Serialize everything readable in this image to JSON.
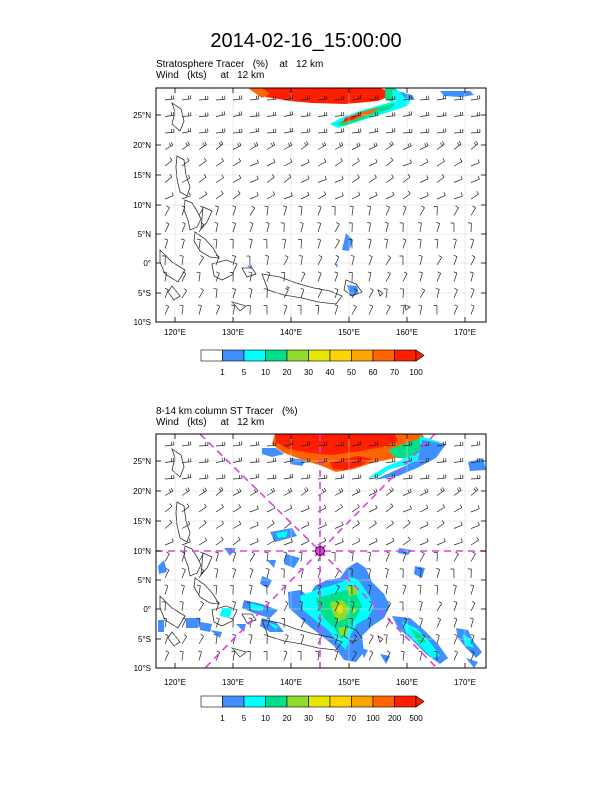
{
  "title": "2014-02-16_15:00:00",
  "panel1": {
    "line1": "Stratosphere Tracer   (%)    at   12 km",
    "line2": "Wind   (kts)     at   12 km",
    "lon_labels": [
      "120°E",
      "130°E",
      "140°E",
      "150°E",
      "160°E",
      "170°E"
    ],
    "lat_labels": [
      "25°N",
      "20°N",
      "15°N",
      "10°N",
      "5°N",
      "0°",
      "5°S",
      "10°S"
    ],
    "colorbar": {
      "labels": [
        "1",
        "5",
        "10",
        "20",
        "30",
        "40",
        "50",
        "60",
        "70",
        "100"
      ],
      "colors": [
        "#ffffff",
        "#3f8fff",
        "#00ffff",
        "#00e08a",
        "#8fdc2e",
        "#e6e600",
        "#ffd400",
        "#ffa500",
        "#ff6400",
        "#ff1e00"
      ]
    }
  },
  "panel2": {
    "line1": "8-14 km column ST Tracer   (%)",
    "line2": "Wind   (kts)     at   12 km",
    "lon_labels": [
      "120°E",
      "130°E",
      "140°E",
      "150°E",
      "160°E",
      "170°E"
    ],
    "lat_labels": [
      "25°N",
      "20°N",
      "15°N",
      "10°N",
      "5°N",
      "0°",
      "5°S",
      "10°S"
    ],
    "colorbar": {
      "labels": [
        "1",
        "5",
        "10",
        "20",
        "30",
        "50",
        "70",
        "100",
        "200",
        "500"
      ],
      "colors": [
        "#ffffff",
        "#3f8fff",
        "#00ffff",
        "#00e08a",
        "#8fdc2e",
        "#e6e600",
        "#ffd400",
        "#ffa500",
        "#ff6400",
        "#ff1e00"
      ]
    },
    "marker_color": "#e040e0"
  }
}
